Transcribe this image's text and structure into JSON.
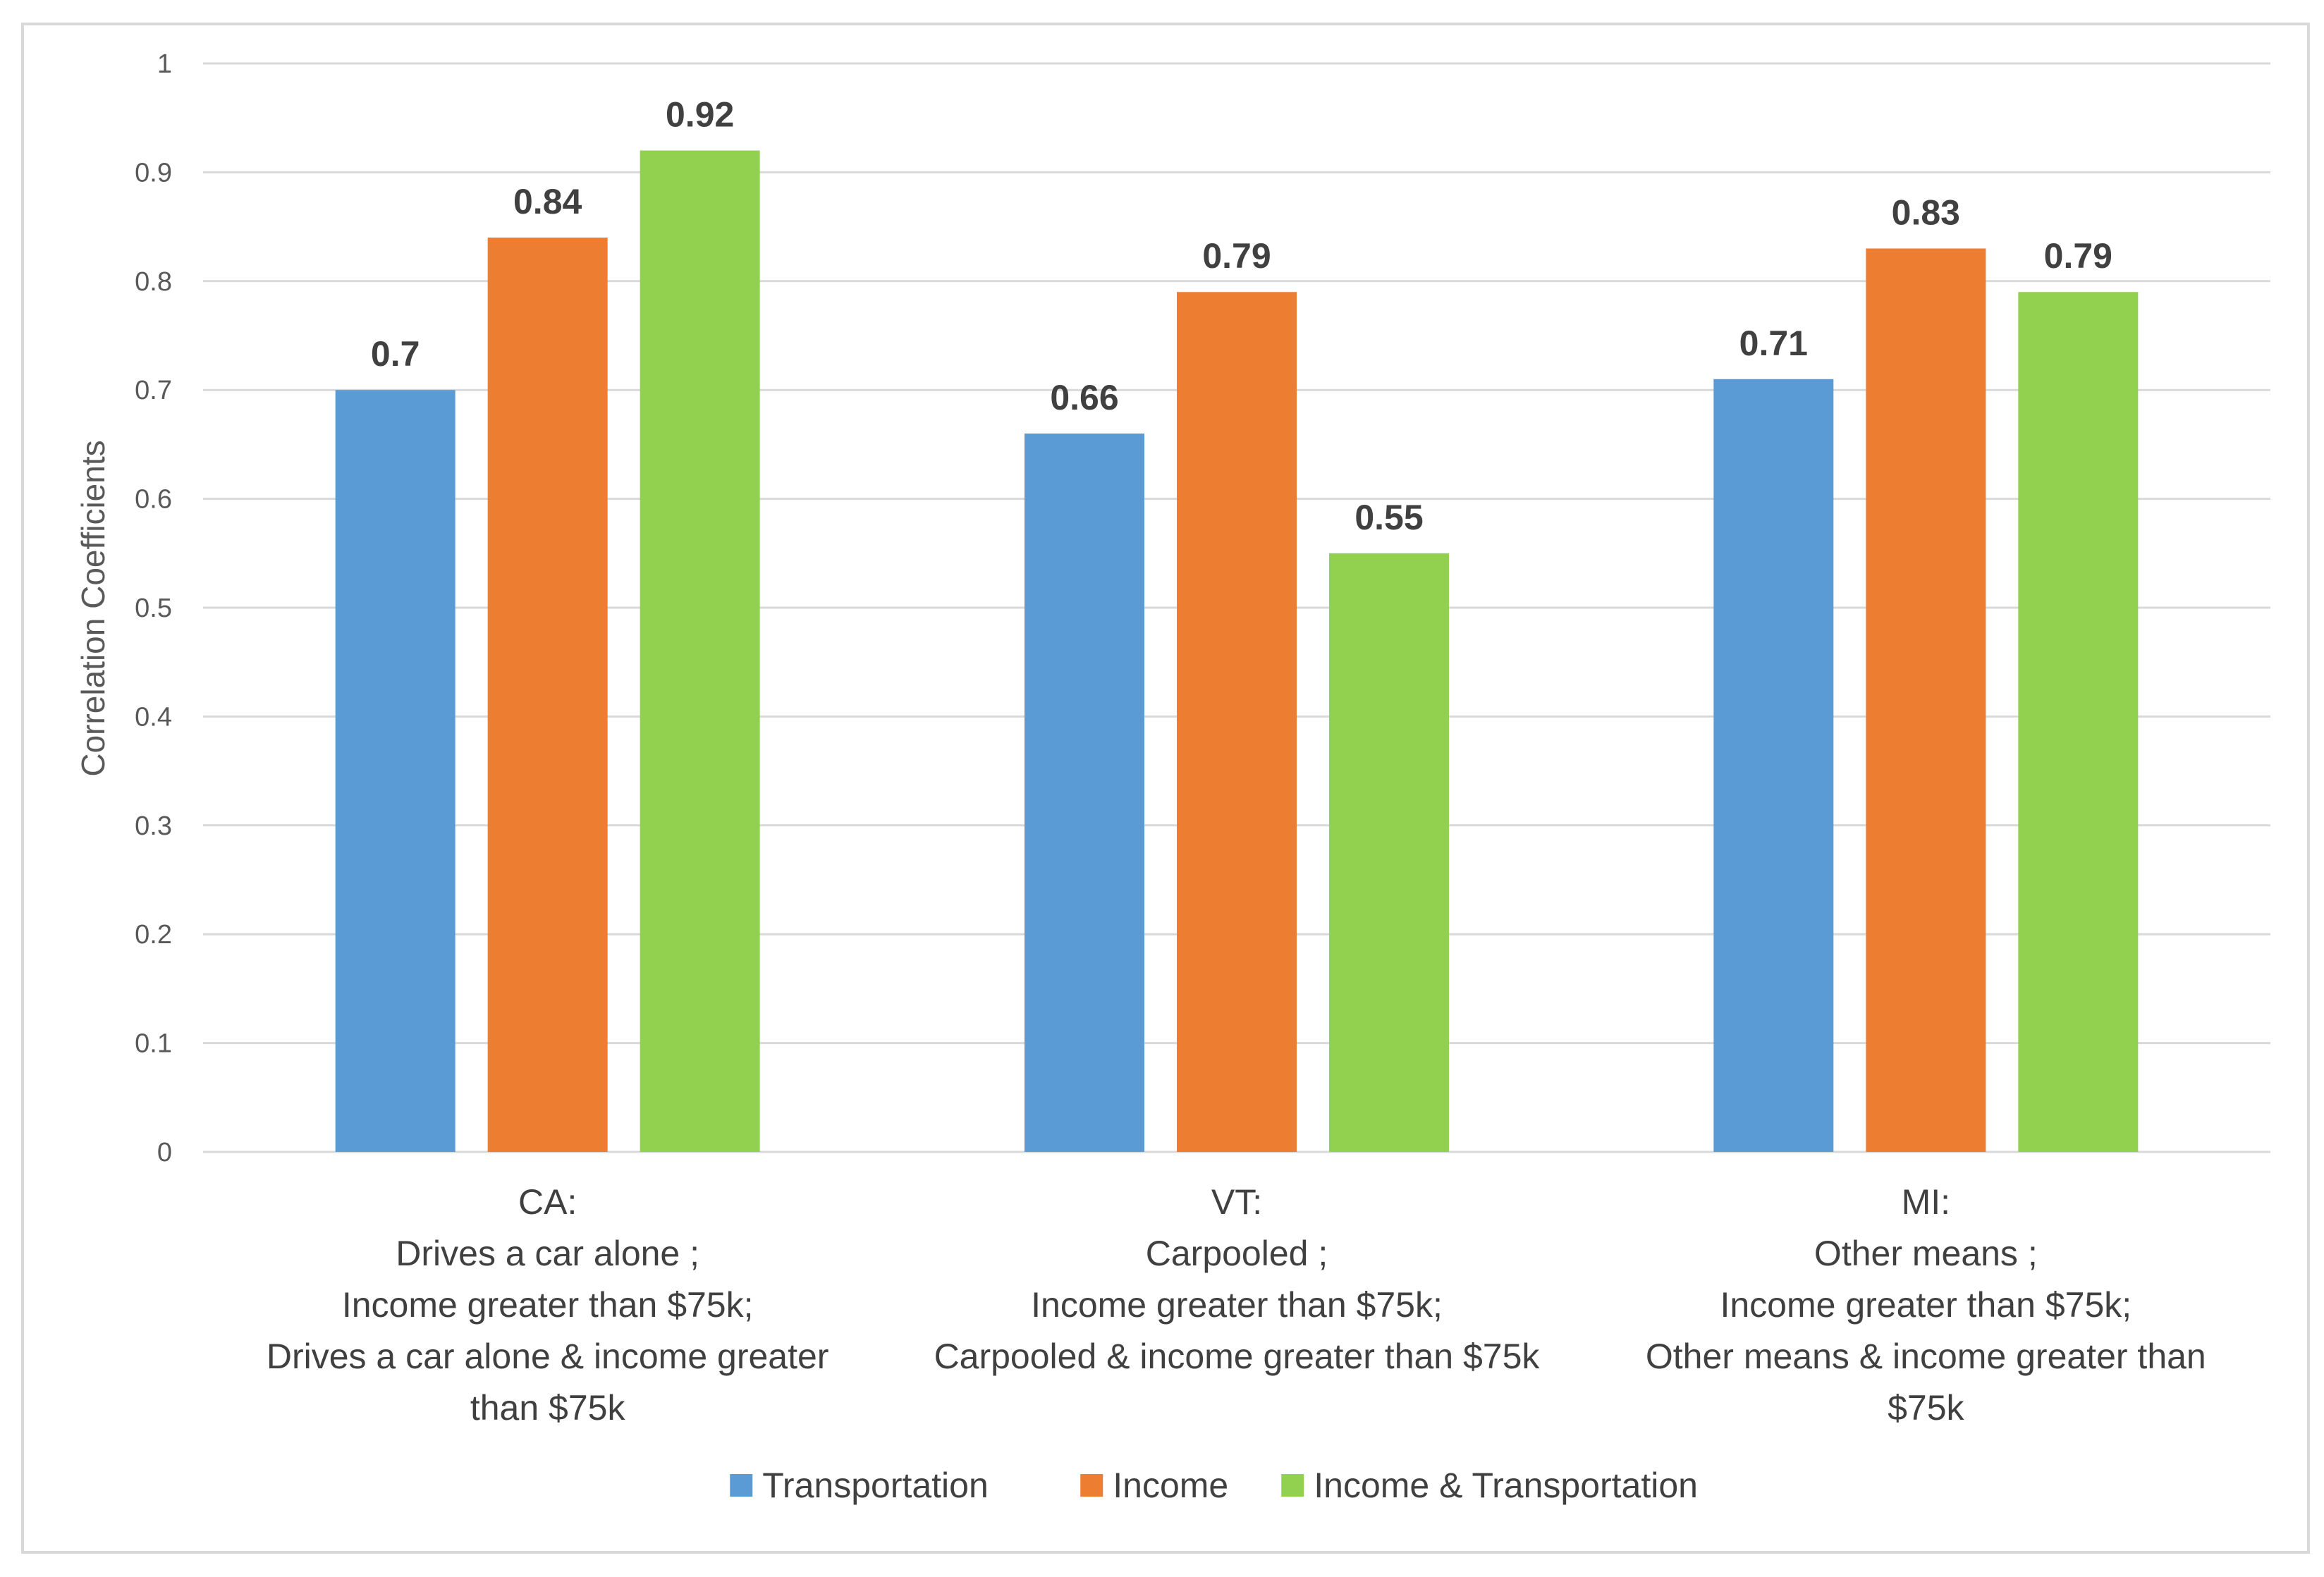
{
  "chart_data": {
    "type": "bar",
    "title": "",
    "xlabel": "",
    "ylabel": "Correlation Coefficients",
    "ylim": [
      0,
      1
    ],
    "yticks": [
      "0",
      "0.1",
      "0.2",
      "0.3",
      "0.4",
      "0.5",
      "0.6",
      "0.7",
      "0.8",
      "0.9",
      "1"
    ],
    "grid": true,
    "legend_position": "bottom",
    "categories": [
      [
        "CA:",
        "Drives a car alone ;",
        "Income greater than $75k;",
        "Drives a car alone & income greater",
        "than $75k"
      ],
      [
        "VT:",
        "Carpooled ;",
        "Income greater than $75k;",
        "Carpooled & income greater than $75k"
      ],
      [
        "MI:",
        "Other means ;",
        "Income greater than $75k;",
        "Other means & income greater than",
        "$75k"
      ]
    ],
    "series": [
      {
        "name": "Transportation",
        "color": "#5b9bd5",
        "values": [
          0.7,
          0.66,
          0.71
        ],
        "labels": [
          "0.7",
          "0.66",
          "0.71"
        ]
      },
      {
        "name": "Income",
        "color": "#ed7d31",
        "values": [
          0.84,
          0.79,
          0.83
        ],
        "labels": [
          "0.84",
          "0.79",
          "0.83"
        ]
      },
      {
        "name": "Income & Transportation",
        "color": "#92d050",
        "values": [
          0.92,
          0.55,
          0.79
        ],
        "labels": [
          "0.92",
          "0.55",
          "0.79"
        ]
      }
    ]
  },
  "colors": {
    "gridline": "#d9d9d9",
    "axis_text": "#595959",
    "label_text": "#404040"
  }
}
